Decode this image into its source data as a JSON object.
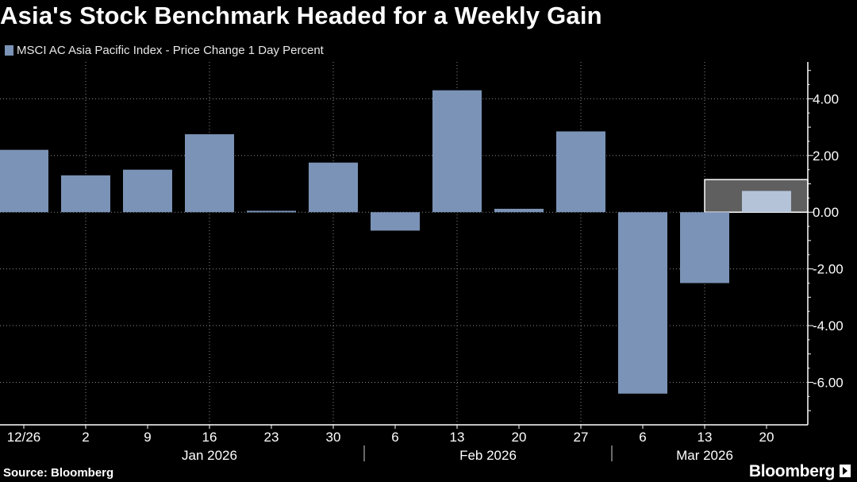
{
  "title": "Asia's Stock Benchmark Headed for a Weekly Gain",
  "source": "Source: Bloomberg",
  "brand": "Bloomberg",
  "colors": {
    "bar": "#7b93b6",
    "bar_highlight": "#b5c3d8",
    "highlight_box": "#5f5f5f",
    "grid": "#8a8a8a",
    "text": "#ffffff"
  },
  "chart_data": {
    "type": "bar",
    "title": "Asia's Stock Benchmark Headed for a Weekly Gain",
    "legend": "MSCI AC Asia Pacific Index - Price Change 1 Day Percent",
    "categories": [
      "12/26",
      "2",
      "9",
      "16",
      "23",
      "30",
      "6",
      "13",
      "20",
      "27",
      "6",
      "13",
      "20"
    ],
    "values": [
      2.2,
      1.3,
      1.5,
      2.75,
      0.05,
      1.75,
      -0.65,
      4.3,
      0.12,
      2.85,
      -6.4,
      -2.5,
      0.75
    ],
    "highlight_index": 12,
    "month_labels": [
      {
        "label": "Jan 2026",
        "start": 1,
        "end": 5
      },
      {
        "label": "Feb 2026",
        "start": 6,
        "end": 9
      },
      {
        "label": "Mar 2026",
        "start": 10,
        "end": 12
      }
    ],
    "yticks": [
      4.0,
      2.0,
      0.0,
      -2.0,
      -4.0,
      -6.0
    ],
    "ytick_labels": [
      "4.00",
      "2.00",
      "0.00",
      "-2.00",
      "-4.00",
      "-6.00"
    ],
    "ylim": [
      -7.5,
      5.3
    ],
    "y_axis_position": "right",
    "xlabel": "",
    "ylabel": "",
    "grid": true
  }
}
